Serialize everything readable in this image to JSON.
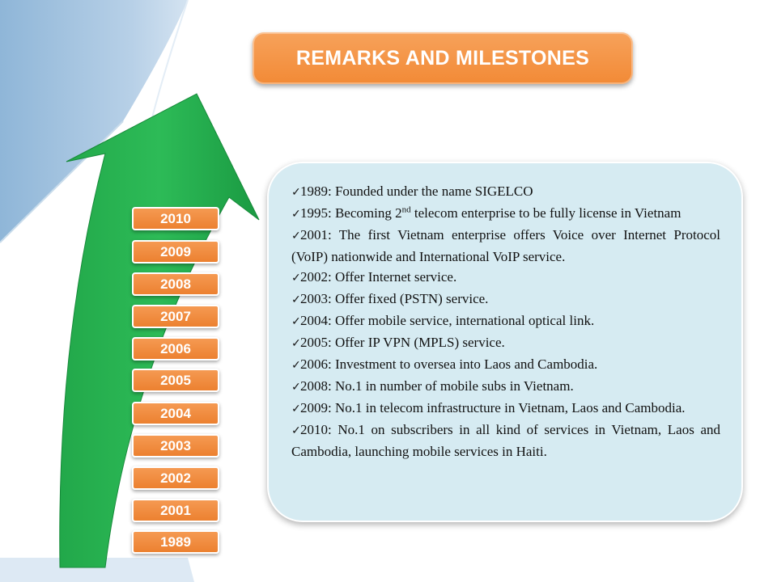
{
  "title": "REMARKS AND MILESTONES",
  "years": [
    "2010",
    "2009",
    "2008",
    "2007",
    "2006",
    "2005",
    "2004",
    "2003",
    "2002",
    "2001",
    "1989"
  ],
  "milestones": [
    {
      "text": "1989: Founded under the name SIGELCO"
    },
    {
      "text_before": "1995: Becoming 2",
      "sup": "nd",
      "text_after": " telecom enterprise to be fully license in Vietnam"
    },
    {
      "text": "2001: The first Vietnam enterprise offers Voice over Internet Protocol  (VoIP) nationwide and International VoIP service."
    },
    {
      "text": "2002: Offer Internet service."
    },
    {
      "text": "2003: Offer fixed (PSTN) service."
    },
    {
      "text": "2004: Offer mobile service, international optical link."
    },
    {
      "text": "2005: Offer IP VPN (MPLS) service."
    },
    {
      "text": "2006: Investment to oversea into Laos and Cambodia."
    },
    {
      "text": "2008: No.1 in number of mobile subs in Vietnam."
    },
    {
      "text": "2009: No.1 in telecom infrastructure in Vietnam, Laos  and Cambodia."
    },
    {
      "text": "2010: No.1 on subscribers in all kind of services in Vietnam, Laos and Cambodia, launching mobile services in Haiti."
    }
  ],
  "colors": {
    "accent_orange": "#f28a36",
    "arrow_green": "#1fae4b",
    "panel_blue": "#d6ebf2",
    "background_blue": "#9bbfdc"
  },
  "icons": {
    "bullet": "checkmark-icon",
    "decor": "growth-arrow-icon"
  }
}
